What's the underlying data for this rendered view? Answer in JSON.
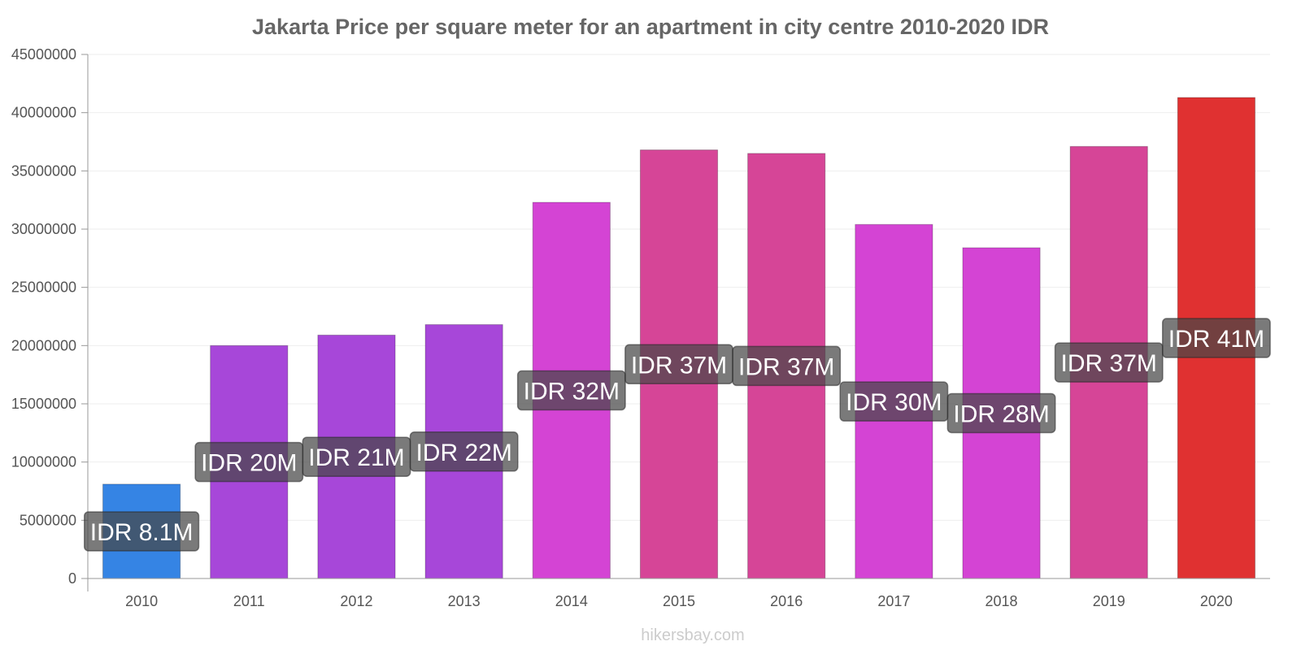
{
  "chart_data": {
    "type": "bar",
    "title": "Jakarta Price per square meter for an apartment in city centre 2010-2020 IDR",
    "xlabel": "",
    "ylabel": "",
    "ylim": [
      0,
      45000000
    ],
    "yticks": [
      "0",
      "5000000",
      "10000000",
      "15000000",
      "20000000",
      "25000000",
      "30000000",
      "35000000",
      "40000000",
      "45000000"
    ],
    "categories": [
      "2010",
      "2011",
      "2012",
      "2013",
      "2014",
      "2015",
      "2016",
      "2017",
      "2018",
      "2019",
      "2020"
    ],
    "values": [
      8100000,
      20000000,
      20900000,
      21800000,
      32300000,
      36800000,
      36500000,
      30400000,
      28400000,
      37100000,
      41300000
    ],
    "data_labels": [
      "IDR 8.1M",
      "IDR 20M",
      "IDR 21M",
      "IDR 22M",
      "IDR 32M",
      "IDR 37M",
      "IDR 37M",
      "IDR 30M",
      "IDR 28M",
      "IDR 37M",
      "IDR 41M"
    ],
    "colors": [
      "#3584e4",
      "#a747d9",
      "#a747d9",
      "#a747d9",
      "#d444d4",
      "#d64597",
      "#d64597",
      "#d444d4",
      "#d444d4",
      "#d64597",
      "#e03131"
    ],
    "grid": true
  },
  "footer": {
    "watermark": "hikersbay.com"
  }
}
